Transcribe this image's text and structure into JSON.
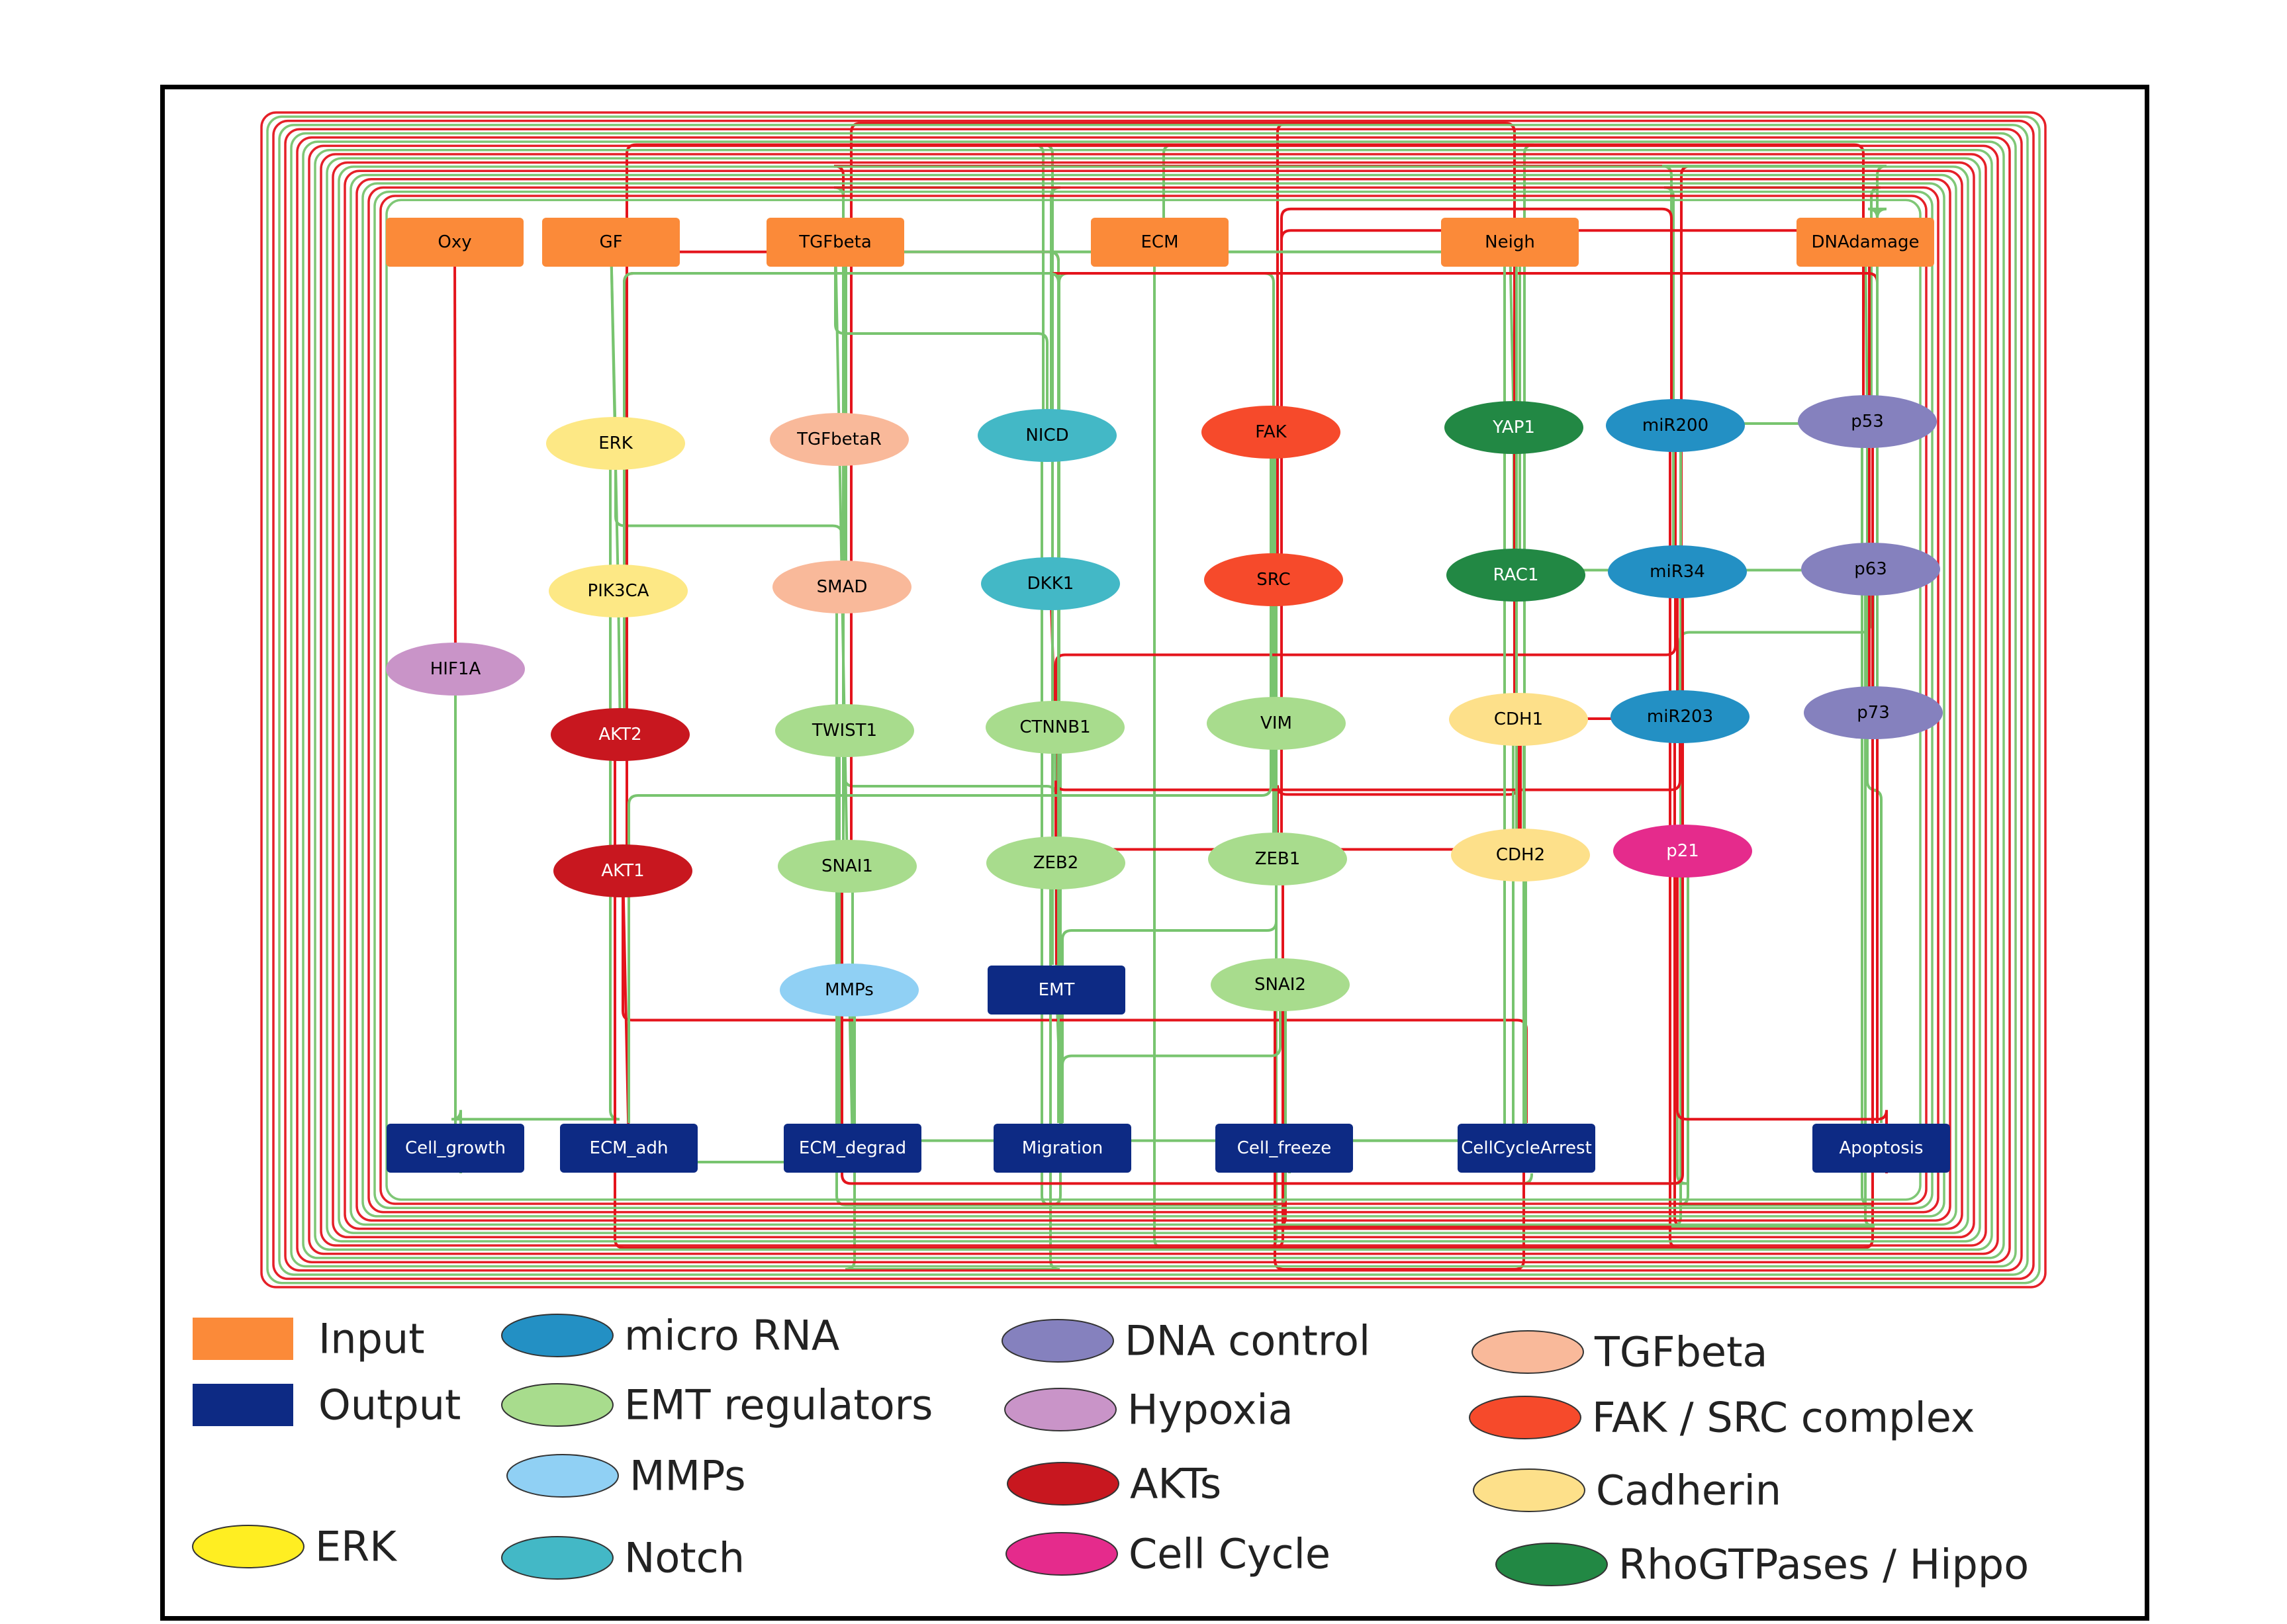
{
  "colors": {
    "input": "#FB8A39",
    "output": "#0D2A84",
    "erk": "#FDE885",
    "erk_legend": "#FFEE22",
    "micro_rna": "#2390C4",
    "emt_regulators": "#A8DC8D",
    "mmps": "#90D0F4",
    "notch": "#43B8C6",
    "dna_control": "#8581BE",
    "hypoxia": "#C994C8",
    "akts": "#C8171F",
    "cell_cycle": "#E52B8C",
    "tgfbeta": "#F9B99A",
    "fak_src": "#F64A2B",
    "cadherin": "#FDE08A",
    "rhogtpases_hippo": "#228844",
    "activation_edge": "#78C46F",
    "inhibition_edge": "#E4141C"
  },
  "nodes": [
    {
      "id": "Oxy",
      "label": "Oxy",
      "shape": "rect",
      "group": "input"
    },
    {
      "id": "GF",
      "label": "GF",
      "shape": "rect",
      "group": "input"
    },
    {
      "id": "TGFbeta",
      "label": "TGFbeta",
      "shape": "rect",
      "group": "input"
    },
    {
      "id": "ECM",
      "label": "ECM",
      "shape": "rect",
      "group": "input"
    },
    {
      "id": "Neigh",
      "label": "Neigh",
      "shape": "rect",
      "group": "input"
    },
    {
      "id": "DNAdamage",
      "label": "DNAdamage",
      "shape": "rect",
      "group": "input"
    },
    {
      "id": "ERK",
      "label": "ERK",
      "shape": "ellipse",
      "group": "erk"
    },
    {
      "id": "TGFbetaR",
      "label": "TGFbetaR",
      "shape": "ellipse",
      "group": "tgfbeta"
    },
    {
      "id": "NICD",
      "label": "NICD",
      "shape": "ellipse",
      "group": "notch"
    },
    {
      "id": "FAK",
      "label": "FAK",
      "shape": "ellipse",
      "group": "fak_src"
    },
    {
      "id": "YAP1",
      "label": "YAP1",
      "shape": "ellipse",
      "group": "rhogtpases_hippo"
    },
    {
      "id": "miR200",
      "label": "miR200",
      "shape": "ellipse",
      "group": "micro_rna"
    },
    {
      "id": "p53",
      "label": "p53",
      "shape": "ellipse",
      "group": "dna_control"
    },
    {
      "id": "PIK3CA",
      "label": "PIK3CA",
      "shape": "ellipse",
      "group": "erk"
    },
    {
      "id": "SMAD",
      "label": "SMAD",
      "shape": "ellipse",
      "group": "tgfbeta"
    },
    {
      "id": "DKK1",
      "label": "DKK1",
      "shape": "ellipse",
      "group": "notch"
    },
    {
      "id": "SRC",
      "label": "SRC",
      "shape": "ellipse",
      "group": "fak_src"
    },
    {
      "id": "RAC1",
      "label": "RAC1",
      "shape": "ellipse",
      "group": "rhogtpases_hippo"
    },
    {
      "id": "miR34",
      "label": "miR34",
      "shape": "ellipse",
      "group": "micro_rna"
    },
    {
      "id": "p63",
      "label": "p63",
      "shape": "ellipse",
      "group": "dna_control"
    },
    {
      "id": "HIF1A",
      "label": "HIF1A",
      "shape": "ellipse",
      "group": "hypoxia"
    },
    {
      "id": "AKT2",
      "label": "AKT2",
      "shape": "ellipse",
      "group": "akts"
    },
    {
      "id": "TWIST1",
      "label": "TWIST1",
      "shape": "ellipse",
      "group": "emt_regulators"
    },
    {
      "id": "CTNNB1",
      "label": "CTNNB1",
      "shape": "ellipse",
      "group": "emt_regulators"
    },
    {
      "id": "VIM",
      "label": "VIM",
      "shape": "ellipse",
      "group": "emt_regulators"
    },
    {
      "id": "CDH1",
      "label": "CDH1",
      "shape": "ellipse",
      "group": "cadherin"
    },
    {
      "id": "miR203",
      "label": "miR203",
      "shape": "ellipse",
      "group": "micro_rna"
    },
    {
      "id": "p73",
      "label": "p73",
      "shape": "ellipse",
      "group": "dna_control"
    },
    {
      "id": "AKT1",
      "label": "AKT1",
      "shape": "ellipse",
      "group": "akts"
    },
    {
      "id": "SNAI1",
      "label": "SNAI1",
      "shape": "ellipse",
      "group": "emt_regulators"
    },
    {
      "id": "ZEB2",
      "label": "ZEB2",
      "shape": "ellipse",
      "group": "emt_regulators"
    },
    {
      "id": "ZEB1",
      "label": "ZEB1",
      "shape": "ellipse",
      "group": "emt_regulators"
    },
    {
      "id": "CDH2",
      "label": "CDH2",
      "shape": "ellipse",
      "group": "cadherin"
    },
    {
      "id": "p21",
      "label": "p21",
      "shape": "ellipse",
      "group": "cell_cycle"
    },
    {
      "id": "MMPs",
      "label": "MMPs",
      "shape": "ellipse",
      "group": "mmps"
    },
    {
      "id": "EMT",
      "label": "EMT",
      "shape": "rect",
      "group": "output"
    },
    {
      "id": "SNAI2",
      "label": "SNAI2",
      "shape": "ellipse",
      "group": "emt_regulators"
    },
    {
      "id": "Cell_growth",
      "label": "Cell_growth",
      "shape": "rect",
      "group": "output"
    },
    {
      "id": "ECM_adh",
      "label": "ECM_adh",
      "shape": "rect",
      "group": "output"
    },
    {
      "id": "ECM_degrad",
      "label": "ECM_degrad",
      "shape": "rect",
      "group": "output"
    },
    {
      "id": "Migration",
      "label": "Migration",
      "shape": "rect",
      "group": "output"
    },
    {
      "id": "Cell_freeze",
      "label": "Cell_freeze",
      "shape": "rect",
      "group": "output"
    },
    {
      "id": "CellCycleArrest",
      "label": "CellCycleArrest",
      "shape": "rect",
      "group": "output"
    },
    {
      "id": "Apoptosis",
      "label": "Apoptosis",
      "shape": "rect",
      "group": "output"
    }
  ],
  "edges": [
    {
      "from": "Oxy",
      "to": "HIF1A",
      "type": "inhibition"
    },
    {
      "from": "GF",
      "to": "ERK",
      "type": "activation"
    },
    {
      "from": "TGFbeta",
      "to": "TGFbetaR",
      "type": "activation"
    },
    {
      "from": "ECM",
      "to": "NICD",
      "type": "activation"
    },
    {
      "from": "ECM",
      "to": "FAK",
      "type": "activation"
    },
    {
      "from": "Neigh",
      "to": "YAP1",
      "type": "activation"
    },
    {
      "from": "DNAdamage",
      "to": "p53",
      "type": "activation"
    },
    {
      "from": "TGFbetaR",
      "to": "SMAD",
      "type": "activation"
    },
    {
      "from": "FAK",
      "to": "SRC",
      "type": "activation"
    },
    {
      "from": "SRC",
      "to": "VIM",
      "type": "activation"
    },
    {
      "from": "NICD",
      "to": "CTNNB1",
      "type": "activation"
    },
    {
      "from": "DKK1",
      "to": "CTNNB1",
      "type": "inhibition"
    },
    {
      "from": "SMAD",
      "to": "TWIST1",
      "type": "activation"
    },
    {
      "from": "PIK3CA",
      "to": "AKT2",
      "type": "activation"
    },
    {
      "from": "ERK",
      "to": "SMAD",
      "type": "activation"
    },
    {
      "from": "HIF1A",
      "to": "Cell_growth",
      "type": "activation"
    },
    {
      "from": "AKT2",
      "to": "SNAI1",
      "type": "activation"
    },
    {
      "from": "AKT1",
      "to": "ECM_adh",
      "type": "inhibition"
    },
    {
      "from": "AKT1",
      "to": "Migration",
      "type": "inhibition"
    },
    {
      "from": "TWIST1",
      "to": "SNAI1",
      "type": "activation"
    },
    {
      "from": "TWIST1",
      "to": "ZEB2",
      "type": "activation"
    },
    {
      "from": "CTNNB1",
      "to": "ZEB1",
      "type": "activation"
    },
    {
      "from": "ZEB2",
      "to": "EMT",
      "type": "activation"
    },
    {
      "from": "ZEB1",
      "to": "CDH1",
      "type": "inhibition"
    },
    {
      "from": "SNAI1",
      "to": "CDH1",
      "type": "inhibition"
    },
    {
      "from": "SNAI2",
      "to": "CDH1",
      "type": "inhibition"
    },
    {
      "from": "CDH1",
      "to": "EMT",
      "type": "inhibition"
    },
    {
      "from": "CDH2",
      "to": "EMT",
      "type": "activation"
    },
    {
      "from": "miR200",
      "to": "ZEB1",
      "type": "inhibition"
    },
    {
      "from": "miR200",
      "to": "ZEB2",
      "type": "inhibition"
    },
    {
      "from": "miR34",
      "to": "SNAI1",
      "type": "inhibition"
    },
    {
      "from": "miR203",
      "to": "SNAI2",
      "type": "inhibition"
    },
    {
      "from": "p53",
      "to": "miR200",
      "type": "activation"
    },
    {
      "from": "p53",
      "to": "miR34",
      "type": "activation"
    },
    {
      "from": "p53",
      "to": "p21",
      "type": "activation"
    },
    {
      "from": "p63",
      "to": "miR203",
      "type": "activation"
    },
    {
      "from": "p73",
      "to": "Apoptosis",
      "type": "activation"
    },
    {
      "from": "p21",
      "to": "CellCycleArrest",
      "type": "activation"
    },
    {
      "from": "p53",
      "to": "Apoptosis",
      "type": "activation"
    },
    {
      "from": "MMPs",
      "to": "ECM_degrad",
      "type": "activation"
    },
    {
      "from": "EMT",
      "to": "Migration",
      "type": "activation"
    },
    {
      "from": "VIM",
      "to": "Migration",
      "type": "activation"
    },
    {
      "from": "RAC1",
      "to": "Migration",
      "type": "activation"
    },
    {
      "from": "CDH1",
      "to": "Cell_freeze",
      "type": "activation"
    },
    {
      "from": "AKT1",
      "to": "CellCycleArrest",
      "type": "inhibition"
    },
    {
      "from": "AKT2",
      "to": "Apoptosis",
      "type": "inhibition"
    },
    {
      "from": "ERK",
      "to": "Cell_growth",
      "type": "activation"
    },
    {
      "from": "YAP1",
      "to": "p73",
      "type": "activation"
    },
    {
      "from": "SRC",
      "to": "CDH1",
      "type": "inhibition"
    },
    {
      "from": "ZEB2",
      "to": "MMPs",
      "type": "activation"
    },
    {
      "from": "SNAI2",
      "to": "Migration",
      "type": "activation"
    },
    {
      "from": "AKT1",
      "to": "p53",
      "type": "inhibition"
    },
    {
      "from": "AKT2",
      "to": "p53",
      "type": "inhibition"
    },
    {
      "from": "miR34",
      "to": "CDH2",
      "type": "inhibition"
    },
    {
      "from": "p73",
      "to": "miR200",
      "type": "activation"
    },
    {
      "from": "p63",
      "to": "miR200",
      "type": "activation"
    },
    {
      "from": "TGFbeta",
      "to": "NICD",
      "type": "activation"
    },
    {
      "from": "NICD",
      "to": "SNAI1",
      "type": "activation"
    },
    {
      "from": "SMAD",
      "to": "SNAI2",
      "type": "activation"
    },
    {
      "from": "CTNNB1",
      "to": "ZEB2",
      "type": "activation"
    },
    {
      "from": "ZEB1",
      "to": "miR200",
      "type": "inhibition"
    },
    {
      "from": "SNAI1",
      "to": "miR34",
      "type": "inhibition"
    },
    {
      "from": "ZEB2",
      "to": "miR203",
      "type": "inhibition"
    },
    {
      "from": "ZEB1",
      "to": "p73",
      "type": "inhibition"
    },
    {
      "from": "Neigh",
      "to": "CDH1",
      "type": "activation"
    },
    {
      "from": "GF",
      "to": "PIK3CA",
      "type": "activation"
    },
    {
      "from": "SMAD",
      "to": "CDH2",
      "type": "activation"
    },
    {
      "from": "TWIST1",
      "to": "CDH2",
      "type": "activation"
    },
    {
      "from": "FAK",
      "to": "ECM_adh",
      "type": "activation"
    },
    {
      "from": "AKT2",
      "to": "Migration",
      "type": "activation"
    },
    {
      "from": "p21",
      "to": "Apoptosis",
      "type": "inhibition"
    }
  ],
  "legend": [
    {
      "label": "Input",
      "shape": "rect",
      "group": "input"
    },
    {
      "label": "Output",
      "shape": "rect",
      "group": "output"
    },
    {
      "label": "ERK",
      "shape": "ellipse",
      "group": "erk_legend"
    },
    {
      "label": "micro RNA",
      "shape": "ellipse",
      "group": "micro_rna"
    },
    {
      "label": "EMT regulators",
      "shape": "ellipse",
      "group": "emt_regulators"
    },
    {
      "label": "MMPs",
      "shape": "ellipse",
      "group": "mmps"
    },
    {
      "label": "Notch",
      "shape": "ellipse",
      "group": "notch"
    },
    {
      "label": "DNA control",
      "shape": "ellipse",
      "group": "dna_control"
    },
    {
      "label": "Hypoxia",
      "shape": "ellipse",
      "group": "hypoxia"
    },
    {
      "label": "AKTs",
      "shape": "ellipse",
      "group": "akts"
    },
    {
      "label": "Cell Cycle",
      "shape": "ellipse",
      "group": "cell_cycle"
    },
    {
      "label": "TGFbeta",
      "shape": "ellipse",
      "group": "tgfbeta"
    },
    {
      "label": "FAK / SRC complex",
      "shape": "ellipse",
      "group": "fak_src"
    },
    {
      "label": "Cadherin",
      "shape": "ellipse",
      "group": "cadherin"
    },
    {
      "label": "RhoGTPases / Hippo",
      "shape": "ellipse",
      "group": "rhogtpases_hippo"
    }
  ]
}
